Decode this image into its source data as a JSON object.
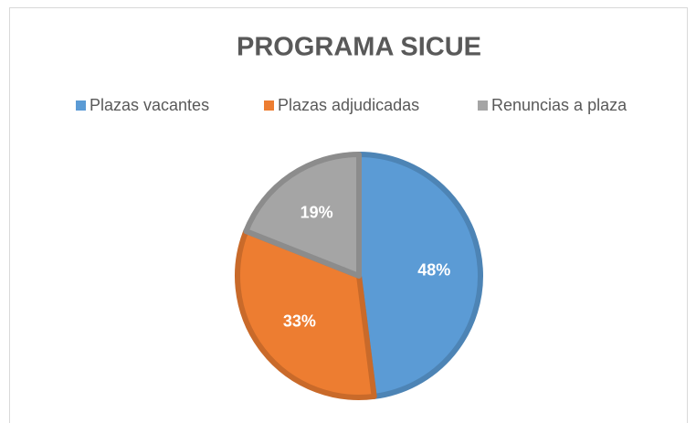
{
  "chart_data": {
    "type": "pie",
    "title": "PROGRAMA SICUE",
    "categories": [
      "Plazas vacantes",
      "Plazas adjudicadas",
      "Renuncias a plaza"
    ],
    "values": [
      48,
      33,
      19
    ],
    "value_labels": [
      "48%",
      "33%",
      "19%"
    ],
    "colors": [
      "#5b9bd5",
      "#ed7d31",
      "#a5a5a5"
    ],
    "legend": "top"
  }
}
